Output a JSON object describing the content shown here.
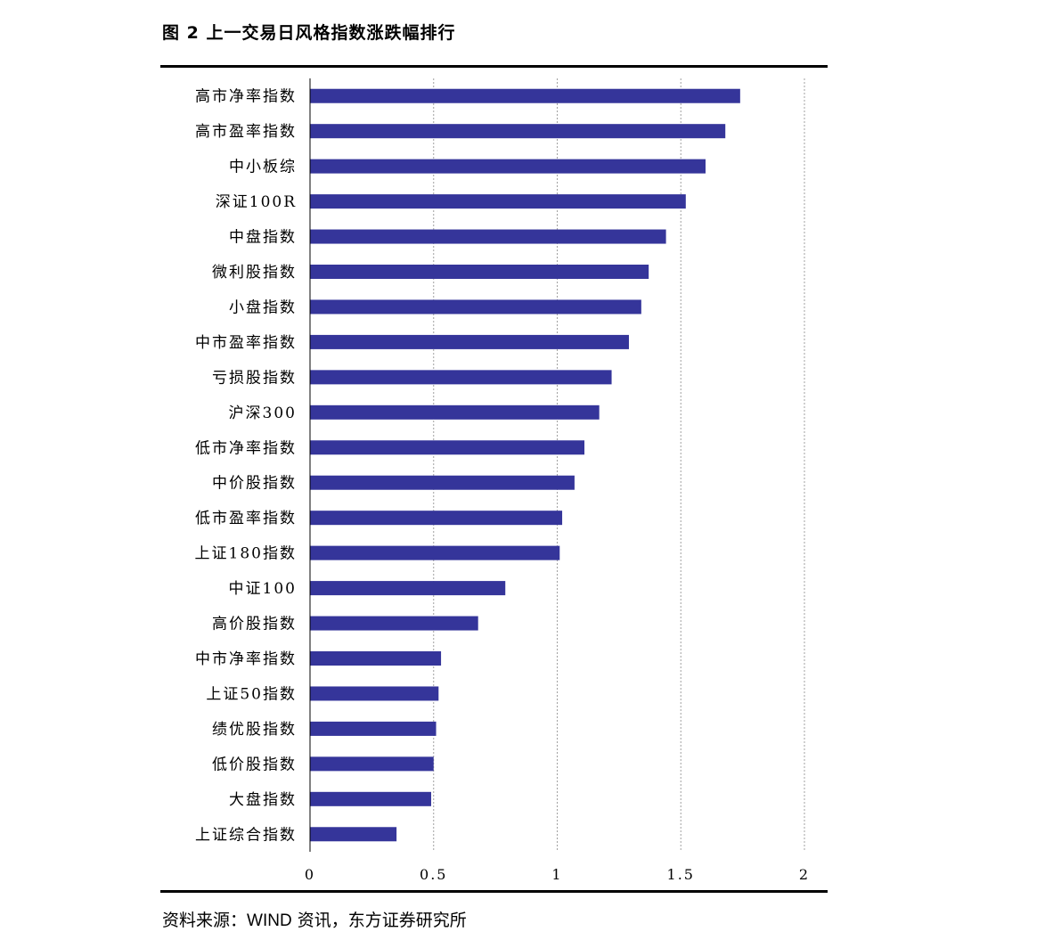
{
  "figure_title": "图 2 上一交易日风格指数涨跌幅排行",
  "source": {
    "prefix": "资料来源：",
    "provider": "WIND",
    "suffix": " 资讯，东方证券研究所"
  },
  "colors": {
    "bar": "#35359a",
    "grid": "#a0a0a0",
    "axis": "#000000"
  },
  "chart_data": {
    "type": "bar",
    "orientation": "horizontal",
    "categories": [
      "高市净率指数",
      "高市盈率指数",
      "中小板综",
      "深证100R",
      "中盘指数",
      "微利股指数",
      "小盘指数",
      "中市盈率指数",
      "亏损股指数",
      "沪深300",
      "低市净率指数",
      "中价股指数",
      "低市盈率指数",
      "上证180指数",
      "中证100",
      "高价股指数",
      "中市净率指数",
      "上证50指数",
      "绩优股指数",
      "低价股指数",
      "大盘指数",
      "上证综合指数"
    ],
    "values": [
      1.74,
      1.68,
      1.6,
      1.52,
      1.44,
      1.37,
      1.34,
      1.29,
      1.22,
      1.17,
      1.11,
      1.07,
      1.02,
      1.01,
      0.79,
      0.68,
      0.53,
      0.52,
      0.51,
      0.5,
      0.49,
      0.35
    ],
    "xlim": [
      0,
      2
    ],
    "xticks": [
      "0",
      "0.5",
      "1",
      "1.5",
      "2"
    ],
    "grid": "vertical dashed",
    "legend": "none"
  }
}
